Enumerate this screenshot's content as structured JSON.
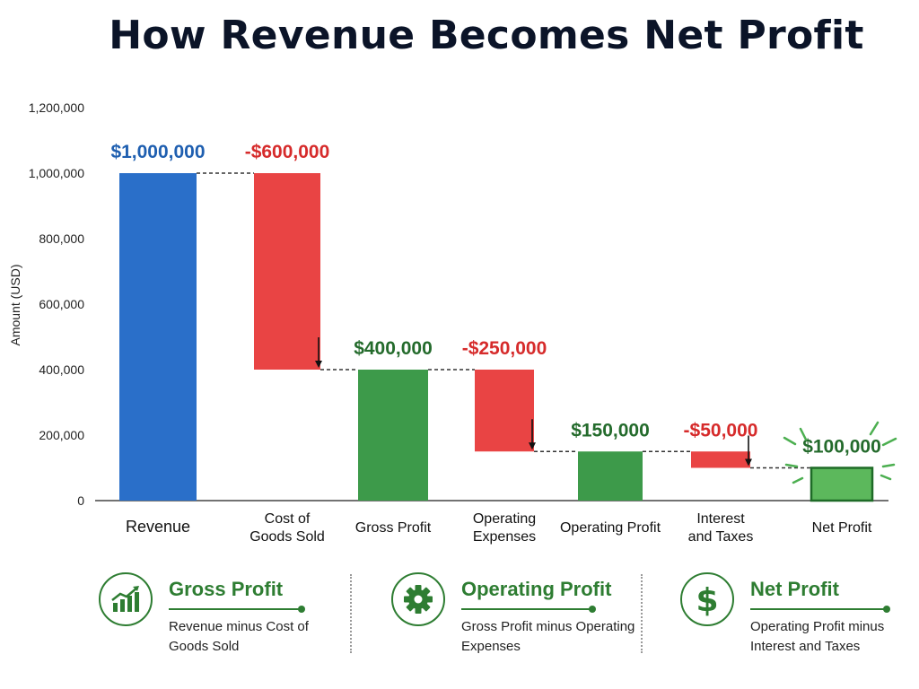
{
  "title": "How Revenue Becomes Net Profit",
  "chart_data": {
    "type": "bar",
    "variant": "waterfall",
    "title": "How Revenue Becomes Net Profit",
    "ylabel": "Amount (USD)",
    "ylim": [
      0,
      1200000
    ],
    "yticks": [
      "0",
      "200,000",
      "400,000",
      "600,000",
      "800,000",
      "1,000,000",
      "1,200,000"
    ],
    "grid": false,
    "categories": [
      "Revenue",
      "Cost of\nGoods Sold",
      "Gross Profit",
      "Operating\nExpenses",
      "Operating Profit",
      "Interest\nand Taxes",
      "Net Profit"
    ],
    "bars": [
      {
        "category": "Revenue",
        "kind": "total",
        "start": 0,
        "end": 1000000,
        "label": "$1,000,000",
        "color": "#2a6fc9"
      },
      {
        "category": "Cost of Goods Sold",
        "kind": "decrease",
        "start": 1000000,
        "end": 400000,
        "label": "-$600,000",
        "color": "#e94444"
      },
      {
        "category": "Gross Profit",
        "kind": "total",
        "start": 0,
        "end": 400000,
        "label": "$400,000",
        "color": "#3d9a4a"
      },
      {
        "category": "Operating Expenses",
        "kind": "decrease",
        "start": 400000,
        "end": 150000,
        "label": "-$250,000",
        "color": "#e94444"
      },
      {
        "category": "Operating Profit",
        "kind": "total",
        "start": 0,
        "end": 150000,
        "label": "$150,000",
        "color": "#3d9a4a"
      },
      {
        "category": "Interest and Taxes",
        "kind": "decrease",
        "start": 150000,
        "end": 100000,
        "label": "-$50,000",
        "color": "#e94444"
      },
      {
        "category": "Net Profit",
        "kind": "total",
        "start": 0,
        "end": 100000,
        "label": "$100,000",
        "color": "#5cb85c",
        "highlight": true
      }
    ],
    "label_colors": {
      "total_blue": "#1f5fb0",
      "total_green": "#246b2c",
      "decrease": "#d62b2b"
    }
  },
  "legend": [
    {
      "icon": "growth-chart-icon",
      "title": "Gross Profit",
      "desc": "Revenue minus Cost of Goods Sold"
    },
    {
      "icon": "gear-icon",
      "title": "Operating Profit",
      "desc": "Gross Profit minus Operating Expenses"
    },
    {
      "icon": "dollar-icon",
      "title": "Net Profit",
      "desc": "Operating Profit minus Interest and Taxes"
    }
  ]
}
